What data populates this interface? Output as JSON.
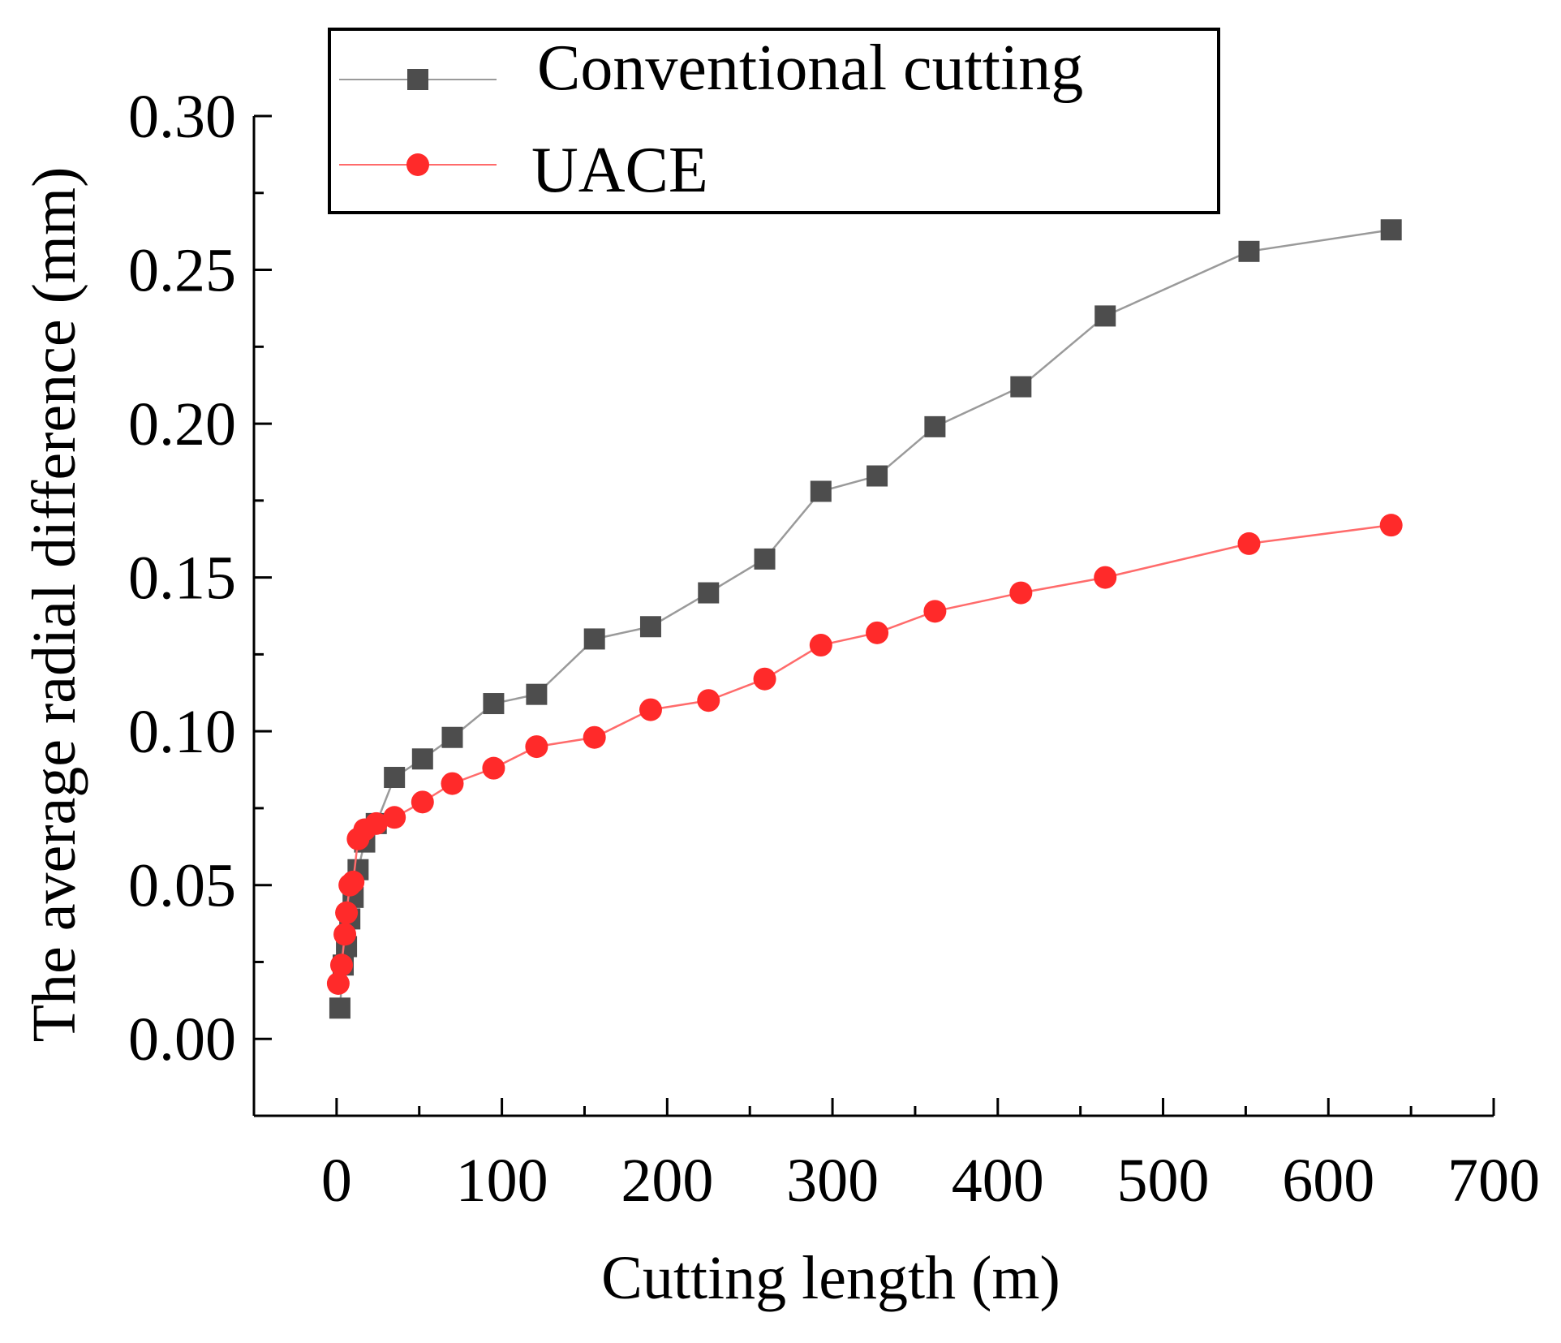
{
  "chart_data": {
    "type": "line",
    "title": "",
    "xlabel": "Cutting length (m)",
    "ylabel": "The average radial difference (mm)",
    "xlim": [
      -50,
      700
    ],
    "ylim": [
      -0.025,
      0.3
    ],
    "x_ticks": [
      0,
      100,
      200,
      300,
      400,
      500,
      600,
      700
    ],
    "x_tick_labels": [
      "0",
      "100",
      "200",
      "300",
      "400",
      "500",
      "600",
      "700"
    ],
    "y_ticks": [
      0.0,
      0.05,
      0.1,
      0.15,
      0.2,
      0.25,
      0.3
    ],
    "y_tick_labels": [
      "0.00",
      "0.05",
      "0.10",
      "0.15",
      "0.20",
      "0.25",
      "0.30"
    ],
    "grid": false,
    "legend_position": "top",
    "series": [
      {
        "name": "Conventional cutting",
        "color": "#4d4d4d",
        "line_color": "#9a9a9a",
        "marker": "square",
        "x": [
          2,
          4,
          6,
          8,
          10,
          13,
          17,
          24,
          35,
          52,
          70,
          95,
          121,
          156,
          190,
          225,
          259,
          293,
          327,
          362,
          414,
          465,
          552,
          638
        ],
        "y": [
          0.01,
          0.024,
          0.03,
          0.039,
          0.046,
          0.055,
          0.064,
          0.07,
          0.085,
          0.091,
          0.098,
          0.109,
          0.112,
          0.13,
          0.134,
          0.145,
          0.156,
          0.178,
          0.183,
          0.199,
          0.212,
          0.235,
          0.256,
          0.263
        ]
      },
      {
        "name": "UACE",
        "color": "#ff2a2a",
        "line_color": "#ff6b6b",
        "marker": "circle",
        "x": [
          1,
          3,
          5,
          6,
          8,
          10,
          13,
          17,
          24,
          35,
          52,
          70,
          95,
          121,
          156,
          190,
          225,
          259,
          293,
          327,
          362,
          414,
          465,
          552,
          638
        ],
        "y": [
          0.018,
          0.024,
          0.034,
          0.041,
          0.05,
          0.051,
          0.065,
          0.068,
          0.07,
          0.072,
          0.077,
          0.083,
          0.088,
          0.095,
          0.098,
          0.107,
          0.11,
          0.117,
          0.128,
          0.132,
          0.139,
          0.145,
          0.15,
          0.161,
          0.167
        ]
      }
    ]
  }
}
